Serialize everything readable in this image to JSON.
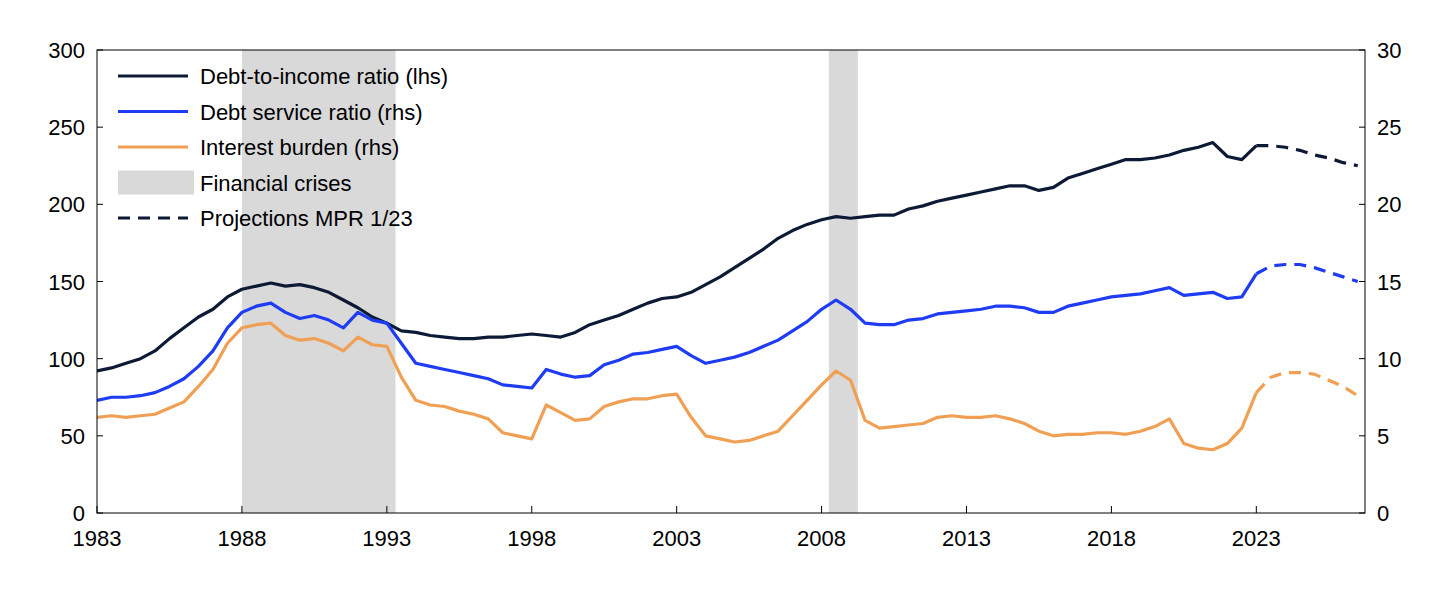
{
  "chart_data": {
    "type": "line",
    "x": [
      1983,
      1983.5,
      1984,
      1984.5,
      1985,
      1985.5,
      1986,
      1986.5,
      1987,
      1987.5,
      1988,
      1988.5,
      1989,
      1989.5,
      1990,
      1990.5,
      1991,
      1991.5,
      1992,
      1992.5,
      1993,
      1993.5,
      1994,
      1994.5,
      1995,
      1995.5,
      1996,
      1996.5,
      1997,
      1997.5,
      1998,
      1998.5,
      1999,
      1999.5,
      2000,
      2000.5,
      2001,
      2001.5,
      2002,
      2002.5,
      2003,
      2003.5,
      2004,
      2004.5,
      2005,
      2005.5,
      2006,
      2006.5,
      2007,
      2007.5,
      2008,
      2008.5,
      2009,
      2009.5,
      2010,
      2010.5,
      2011,
      2011.5,
      2012,
      2012.5,
      2013,
      2013.5,
      2014,
      2014.5,
      2015,
      2015.5,
      2016,
      2016.5,
      2017,
      2017.5,
      2018,
      2018.5,
      2019,
      2019.5,
      2020,
      2020.5,
      2021,
      2021.5,
      2022,
      2022.5,
      2023,
      2023.5,
      2024,
      2024.5,
      2025,
      2025.5,
      2026,
      2026.5
    ],
    "xlim": [
      1983,
      2026.75
    ],
    "xticks": [
      1983,
      1988,
      1993,
      1998,
      2003,
      2008,
      2013,
      2018,
      2023
    ],
    "ylim": [
      0,
      300
    ],
    "yticks": [
      0,
      50,
      100,
      150,
      200,
      250,
      300
    ],
    "y2lim": [
      0,
      30
    ],
    "y2ticks": [
      0,
      5,
      10,
      15,
      20,
      25,
      30
    ],
    "grid": false,
    "legend": "upper left",
    "crises": {
      "name": "Financial crises",
      "color": "#d9d9d9",
      "periods": [
        [
          1988,
          1993.3
        ],
        [
          2008.25,
          2009.25
        ]
      ]
    },
    "series": [
      {
        "name": "Debt-to-income ratio (lhs)",
        "color": "#0c1a36",
        "line_style": "solid",
        "values": [
          92,
          94,
          97,
          100,
          105,
          113,
          120,
          127,
          132,
          140,
          145,
          147,
          149,
          147,
          148,
          146,
          143,
          138,
          133,
          127,
          123,
          118,
          117,
          115,
          114,
          113,
          113,
          114,
          114,
          115,
          116,
          115,
          114,
          117,
          122,
          125,
          128,
          132,
          136,
          139,
          140,
          143,
          148,
          153,
          159,
          165,
          171,
          178,
          183,
          187,
          190,
          192,
          191,
          192,
          193,
          193,
          197,
          199,
          202,
          204,
          206,
          208,
          210,
          212,
          212,
          209,
          211,
          217,
          220,
          223,
          226,
          229,
          229,
          230,
          232,
          235,
          237,
          240,
          231,
          229,
          238,
          null,
          null,
          null,
          null,
          null,
          null,
          null
        ]
      },
      {
        "name": "Debt service ratio (rhs)",
        "color": "#1f3cf5",
        "line_style": "solid",
        "axis": "y2",
        "values": [
          7.3,
          7.5,
          7.5,
          7.6,
          7.8,
          8.2,
          8.7,
          9.5,
          10.5,
          12.0,
          13.0,
          13.4,
          13.6,
          13.0,
          12.6,
          12.8,
          12.5,
          12.0,
          13.0,
          12.5,
          12.3,
          11.0,
          9.7,
          9.5,
          9.3,
          9.1,
          8.9,
          8.7,
          8.3,
          8.2,
          8.1,
          9.3,
          9.0,
          8.8,
          8.9,
          9.6,
          9.9,
          10.3,
          10.4,
          10.6,
          10.8,
          10.2,
          9.7,
          9.9,
          10.1,
          10.4,
          10.8,
          11.2,
          11.8,
          12.4,
          13.2,
          13.8,
          13.2,
          12.3,
          12.2,
          12.2,
          12.5,
          12.6,
          12.9,
          13.0,
          13.1,
          13.2,
          13.4,
          13.4,
          13.3,
          13.0,
          13.0,
          13.4,
          13.6,
          13.8,
          14.0,
          14.1,
          14.2,
          14.4,
          14.6,
          14.1,
          14.2,
          14.3,
          13.9,
          14.0,
          15.5,
          null,
          null,
          null,
          null,
          null,
          null,
          null
        ]
      },
      {
        "name": "Interest burden (rhs)",
        "color": "#f0a054",
        "line_style": "solid",
        "axis": "y2",
        "values": [
          6.2,
          6.3,
          6.2,
          6.3,
          6.4,
          6.8,
          7.2,
          8.2,
          9.3,
          11.0,
          12.0,
          12.2,
          12.3,
          11.5,
          11.2,
          11.3,
          11.0,
          10.5,
          11.4,
          10.9,
          10.8,
          8.8,
          7.3,
          7.0,
          6.9,
          6.6,
          6.4,
          6.1,
          5.2,
          5.0,
          4.8,
          7.0,
          6.5,
          6.0,
          6.1,
          6.9,
          7.2,
          7.4,
          7.4,
          7.6,
          7.7,
          6.2,
          5.0,
          4.8,
          4.6,
          4.7,
          5.0,
          5.3,
          6.3,
          7.3,
          8.3,
          9.2,
          8.6,
          6.0,
          5.5,
          5.6,
          5.7,
          5.8,
          6.2,
          6.3,
          6.2,
          6.2,
          6.3,
          6.1,
          5.8,
          5.3,
          5.0,
          5.1,
          5.1,
          5.2,
          5.2,
          5.1,
          5.3,
          5.6,
          6.1,
          4.5,
          4.2,
          4.1,
          4.5,
          5.5,
          7.8,
          null,
          null,
          null,
          null,
          null,
          null,
          null
        ]
      },
      {
        "name": "Projections MPR 1/23",
        "color": "#0c1a36",
        "line_style": "dashed",
        "values": [
          null,
          null,
          null,
          null,
          null,
          null,
          null,
          null,
          null,
          null,
          null,
          null,
          null,
          null,
          null,
          null,
          null,
          null,
          null,
          null,
          null,
          null,
          null,
          null,
          null,
          null,
          null,
          null,
          null,
          null,
          null,
          null,
          null,
          null,
          null,
          null,
          null,
          null,
          null,
          null,
          null,
          null,
          null,
          null,
          null,
          null,
          null,
          null,
          null,
          null,
          null,
          null,
          null,
          null,
          null,
          null,
          null,
          null,
          null,
          null,
          null,
          null,
          null,
          null,
          null,
          null,
          null,
          null,
          null,
          null,
          null,
          null,
          null,
          null,
          null,
          null,
          null,
          null,
          null,
          null,
          238,
          238,
          237,
          235,
          232,
          230,
          227,
          225
        ]
      },
      {
        "color": "#1f3cf5",
        "line_style": "dashed",
        "axis": "y2",
        "values": [
          null,
          null,
          null,
          null,
          null,
          null,
          null,
          null,
          null,
          null,
          null,
          null,
          null,
          null,
          null,
          null,
          null,
          null,
          null,
          null,
          null,
          null,
          null,
          null,
          null,
          null,
          null,
          null,
          null,
          null,
          null,
          null,
          null,
          null,
          null,
          null,
          null,
          null,
          null,
          null,
          null,
          null,
          null,
          null,
          null,
          null,
          null,
          null,
          null,
          null,
          null,
          null,
          null,
          null,
          null,
          null,
          null,
          null,
          null,
          null,
          null,
          null,
          null,
          null,
          null,
          null,
          null,
          null,
          null,
          null,
          null,
          null,
          null,
          null,
          null,
          null,
          null,
          null,
          null,
          null,
          15.5,
          16.0,
          16.1,
          16.1,
          15.9,
          15.6,
          15.3,
          15.0
        ]
      },
      {
        "color": "#f0a054",
        "line_style": "dashed",
        "axis": "y2",
        "values": [
          null,
          null,
          null,
          null,
          null,
          null,
          null,
          null,
          null,
          null,
          null,
          null,
          null,
          null,
          null,
          null,
          null,
          null,
          null,
          null,
          null,
          null,
          null,
          null,
          null,
          null,
          null,
          null,
          null,
          null,
          null,
          null,
          null,
          null,
          null,
          null,
          null,
          null,
          null,
          null,
          null,
          null,
          null,
          null,
          null,
          null,
          null,
          null,
          null,
          null,
          null,
          null,
          null,
          null,
          null,
          null,
          null,
          null,
          null,
          null,
          null,
          null,
          null,
          null,
          null,
          null,
          null,
          null,
          null,
          null,
          null,
          null,
          null,
          null,
          null,
          null,
          null,
          null,
          null,
          null,
          7.8,
          8.8,
          9.1,
          9.1,
          9.0,
          8.6,
          8.2,
          7.6
        ]
      }
    ]
  }
}
